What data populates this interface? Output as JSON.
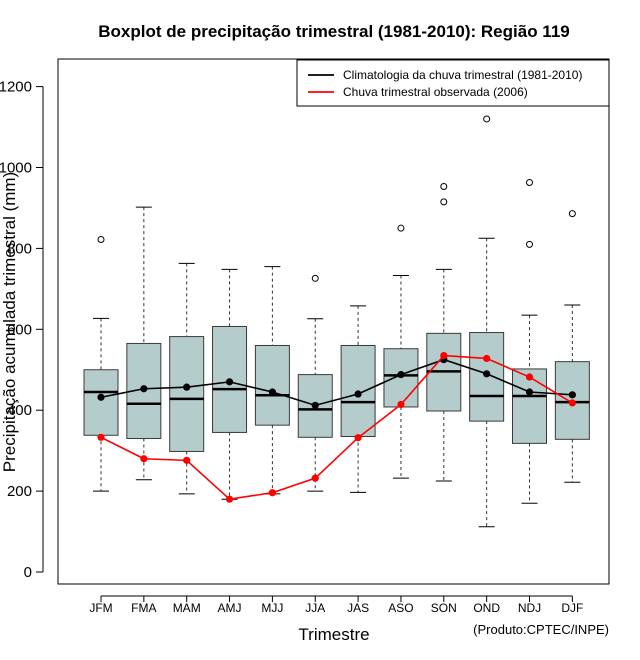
{
  "chart_data": {
    "type": "boxplot",
    "title": "Boxplot de precipitação trimestral (1981-2010): Região 119",
    "xlabel": "Trimestre",
    "ylabel": "Precipitação acumulada trimestral (mm)",
    "credit": "(Produto:CPTEC/INPE)",
    "ylim": [
      -40,
      1260
    ],
    "yticks": [
      0,
      200,
      400,
      600,
      800,
      1000,
      1200
    ],
    "categories": [
      "JFM",
      "FMA",
      "MAM",
      "AMJ",
      "MJJ",
      "JJA",
      "JAS",
      "ASO",
      "SON",
      "OND",
      "NDJ",
      "DJF"
    ],
    "boxes": [
      {
        "min": 200,
        "q1": 338,
        "median": 445,
        "q3": 500,
        "max": 627,
        "outliers": [
          822
        ]
      },
      {
        "min": 228,
        "q1": 330,
        "median": 416,
        "q3": 565,
        "max": 902,
        "outliers": []
      },
      {
        "min": 193,
        "q1": 298,
        "median": 428,
        "q3": 582,
        "max": 763,
        "outliers": []
      },
      {
        "min": 180,
        "q1": 345,
        "median": 452,
        "q3": 607,
        "max": 748,
        "outliers": []
      },
      {
        "min": 193,
        "q1": 363,
        "median": 437,
        "q3": 560,
        "max": 755,
        "outliers": []
      },
      {
        "min": 200,
        "q1": 333,
        "median": 402,
        "q3": 488,
        "max": 626,
        "outliers": [
          726
        ]
      },
      {
        "min": 197,
        "q1": 335,
        "median": 420,
        "q3": 560,
        "max": 658,
        "outliers": []
      },
      {
        "min": 232,
        "q1": 408,
        "median": 486,
        "q3": 552,
        "max": 733,
        "outliers": [
          850
        ]
      },
      {
        "min": 225,
        "q1": 398,
        "median": 496,
        "q3": 590,
        "max": 748,
        "outliers": [
          915,
          953
        ]
      },
      {
        "min": 112,
        "q1": 373,
        "median": 435,
        "q3": 592,
        "max": 825,
        "outliers": [
          1120
        ]
      },
      {
        "min": 170,
        "q1": 318,
        "median": 435,
        "q3": 502,
        "max": 635,
        "outliers": [
          810,
          963
        ]
      },
      {
        "min": 222,
        "q1": 328,
        "median": 420,
        "q3": 520,
        "max": 660,
        "outliers": [
          886
        ]
      }
    ],
    "series": [
      {
        "name": "Climatologia da chuva trimestral (1981-2010)",
        "color": "#000000",
        "values": [
          432,
          453,
          457,
          470,
          445,
          412,
          440,
          488,
          525,
          490,
          445,
          438
        ]
      },
      {
        "name": "Chuva trimestral observada (2006)",
        "color": "#ff0000",
        "values": [
          333,
          280,
          276,
          180,
          196,
          232,
          332,
          414,
          535,
          528,
          482,
          418
        ]
      }
    ],
    "colors": {
      "box_fill": "#b4cccc",
      "box_stroke": "#3a3a3a"
    },
    "legend_position": "top-right",
    "grid": false
  }
}
